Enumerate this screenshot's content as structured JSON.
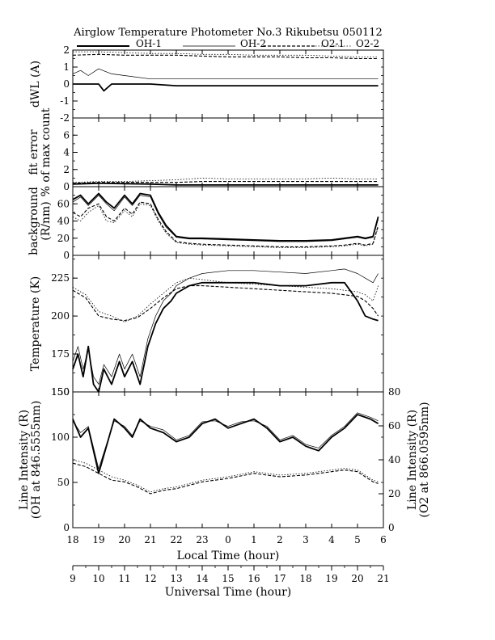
{
  "header": {
    "title": "Airglow Temperature Photometer No.3  Rikubetsu  050112",
    "legend": [
      {
        "label": "OH-1",
        "style": "thick"
      },
      {
        "label": "OH-2",
        "style": "thin"
      },
      {
        "label": "O2-1",
        "style": "dashed"
      },
      {
        "label": "O2-2",
        "style": "dotted"
      }
    ]
  },
  "xaxes": {
    "local": {
      "label": "Local Time (hour)",
      "ticks": [
        "18",
        "19",
        "20",
        "21",
        "22",
        "23",
        "0",
        "1",
        "2",
        "3",
        "4",
        "5",
        "6"
      ]
    },
    "universal": {
      "label": "Universal Time (hour)",
      "ticks": [
        "9",
        "10",
        "11",
        "12",
        "13",
        "14",
        "15",
        "16",
        "17",
        "18",
        "19",
        "20",
        "21"
      ]
    }
  },
  "chart_data": [
    {
      "type": "line",
      "panel": "dwl",
      "ylabel": "dWL (A)",
      "ylim": [
        -2,
        2
      ],
      "yticks": [
        "-2",
        "-1",
        "0",
        "1",
        "2"
      ],
      "x_unit": "universal time (hour)",
      "series": [
        {
          "name": "OH-1",
          "style": "thick",
          "x": [
            9,
            9.5,
            10,
            10.2,
            10.5,
            11,
            12,
            13,
            14,
            15,
            16,
            17,
            18,
            19,
            20,
            20.8
          ],
          "y": [
            0,
            0,
            0,
            -0.4,
            0,
            0,
            0,
            -0.1,
            -0.1,
            -0.1,
            -0.1,
            -0.1,
            -0.1,
            -0.1,
            -0.1,
            -0.1
          ]
        },
        {
          "name": "OH-2",
          "style": "thin",
          "x": [
            9,
            9.3,
            9.6,
            10,
            10.5,
            11,
            12,
            13,
            14,
            15,
            16,
            17,
            18,
            19,
            20,
            20.8
          ],
          "y": [
            0.6,
            0.8,
            0.5,
            0.9,
            0.6,
            0.5,
            0.3,
            0.3,
            0.3,
            0.3,
            0.3,
            0.3,
            0.3,
            0.3,
            0.3,
            0.3
          ]
        },
        {
          "name": "O2-1",
          "style": "dashed",
          "x": [
            9,
            10,
            11,
            12,
            13,
            14,
            15,
            16,
            17,
            18,
            19,
            20,
            20.8
          ],
          "y": [
            1.7,
            1.75,
            1.7,
            1.7,
            1.7,
            1.65,
            1.6,
            1.6,
            1.6,
            1.55,
            1.55,
            1.5,
            1.5
          ]
        },
        {
          "name": "O2-2",
          "style": "dotted",
          "x": [
            9,
            10,
            11,
            12,
            13,
            14,
            15,
            16,
            17,
            18,
            19,
            20,
            20.8
          ],
          "y": [
            1.9,
            1.9,
            1.85,
            1.8,
            1.8,
            1.75,
            1.75,
            1.7,
            1.7,
            1.7,
            1.65,
            1.6,
            1.6
          ]
        }
      ]
    },
    {
      "type": "line",
      "panel": "fit-error",
      "ylabel": "fit error % of max count",
      "ylim": [
        0,
        8
      ],
      "yticks": [
        "0",
        "2",
        "4",
        "6"
      ],
      "x_unit": "universal time (hour)",
      "series": [
        {
          "name": "OH-1",
          "style": "thick",
          "x": [
            9,
            10,
            11,
            12,
            13,
            14,
            15,
            16,
            17,
            18,
            19,
            20,
            20.8
          ],
          "y": [
            0.3,
            0.4,
            0.35,
            0.3,
            0.2,
            0.2,
            0.2,
            0.2,
            0.2,
            0.2,
            0.2,
            0.2,
            0.2
          ]
        },
        {
          "name": "OH-2",
          "style": "thin",
          "x": [
            9,
            10,
            11,
            12,
            13,
            14,
            15,
            16,
            17,
            18,
            19,
            20,
            20.8
          ],
          "y": [
            0.35,
            0.4,
            0.4,
            0.3,
            0.25,
            0.25,
            0.25,
            0.25,
            0.25,
            0.25,
            0.25,
            0.25,
            0.25
          ]
        },
        {
          "name": "O2-1",
          "style": "dashed",
          "x": [
            9,
            10,
            11,
            12,
            13,
            14,
            15,
            16,
            17,
            18,
            19,
            20,
            20.8
          ],
          "y": [
            0.4,
            0.5,
            0.5,
            0.5,
            0.5,
            0.6,
            0.6,
            0.6,
            0.6,
            0.6,
            0.6,
            0.6,
            0.6
          ]
        },
        {
          "name": "O2-2",
          "style": "dotted",
          "x": [
            9,
            10,
            11,
            12,
            13,
            14,
            15,
            16,
            17,
            18,
            19,
            20,
            20.8
          ],
          "y": [
            0.5,
            0.6,
            0.6,
            0.7,
            0.8,
            1.0,
            0.9,
            0.9,
            0.9,
            0.9,
            1.0,
            0.9,
            0.9
          ]
        }
      ]
    },
    {
      "type": "line",
      "panel": "background",
      "ylabel": "background (R/nm)",
      "ylim": [
        0,
        80
      ],
      "yticks": [
        "0",
        "20",
        "40",
        "60"
      ],
      "x_unit": "universal time (hour)",
      "series": [
        {
          "name": "OH-1",
          "style": "thick",
          "x": [
            9,
            9.3,
            9.6,
            10,
            10.3,
            10.6,
            11,
            11.3,
            11.6,
            12,
            12.3,
            12.6,
            13,
            13.5,
            14,
            15,
            16,
            17,
            18,
            19,
            19.5,
            20,
            20.3,
            20.6,
            20.8
          ],
          "y": [
            65,
            70,
            60,
            72,
            62,
            55,
            70,
            60,
            72,
            70,
            50,
            35,
            22,
            20,
            20,
            19,
            18,
            17,
            17,
            18,
            20,
            22,
            20,
            22,
            45
          ]
        },
        {
          "name": "OH-2",
          "style": "thin",
          "x": [
            9,
            9.3,
            9.6,
            10,
            10.3,
            10.6,
            11,
            11.3,
            11.6,
            12,
            12.3,
            12.6,
            13,
            13.5,
            14,
            15,
            16,
            17,
            18,
            19,
            19.5,
            20,
            20.3,
            20.6,
            20.8
          ],
          "y": [
            62,
            68,
            58,
            70,
            60,
            52,
            68,
            58,
            70,
            68,
            48,
            33,
            21,
            19,
            19,
            18,
            17,
            16,
            16,
            17,
            19,
            21,
            19,
            21,
            42
          ]
        },
        {
          "name": "O2-1",
          "style": "dashed",
          "x": [
            9,
            9.3,
            9.6,
            10,
            10.3,
            10.6,
            11,
            11.3,
            11.6,
            12,
            12.3,
            12.6,
            13,
            13.5,
            14,
            15,
            16,
            17,
            18,
            19,
            19.5,
            20,
            20.3,
            20.6,
            20.8
          ],
          "y": [
            50,
            45,
            55,
            60,
            45,
            40,
            55,
            48,
            62,
            60,
            42,
            28,
            16,
            14,
            13,
            12,
            11,
            10,
            10,
            11,
            12,
            14,
            12,
            14,
            35
          ]
        },
        {
          "name": "O2-2",
          "style": "dotted",
          "x": [
            9,
            9.3,
            9.6,
            10,
            10.3,
            10.6,
            11,
            11.3,
            11.6,
            12,
            12.3,
            12.6,
            13,
            13.5,
            14,
            15,
            16,
            17,
            18,
            19,
            19.5,
            20,
            20.3,
            20.6,
            20.8
          ],
          "y": [
            45,
            40,
            50,
            58,
            40,
            38,
            52,
            45,
            60,
            58,
            40,
            26,
            15,
            13,
            12,
            11,
            10,
            9,
            9,
            10,
            11,
            13,
            11,
            13,
            33
          ]
        }
      ]
    },
    {
      "type": "line",
      "panel": "temperature",
      "ylabel": "Temperature (K)",
      "ylim": [
        150,
        240
      ],
      "yticks": [
        "150",
        "175",
        "200",
        "225"
      ],
      "x_unit": "universal time (hour)",
      "series": [
        {
          "name": "OH-1",
          "style": "thick",
          "x": [
            9,
            9.2,
            9.4,
            9.6,
            9.8,
            10,
            10.2,
            10.5,
            10.8,
            11,
            11.3,
            11.6,
            11.9,
            12.2,
            12.5,
            12.8,
            13,
            13.5,
            14,
            15,
            16,
            17,
            18,
            19,
            19.5,
            20,
            20.3,
            20.6,
            20.8
          ],
          "y": [
            165,
            175,
            160,
            180,
            155,
            150,
            165,
            155,
            170,
            160,
            170,
            155,
            180,
            195,
            205,
            210,
            215,
            220,
            222,
            222,
            222,
            220,
            220,
            222,
            222,
            210,
            200,
            198,
            197
          ]
        },
        {
          "name": "OH-2",
          "style": "thin",
          "x": [
            9,
            9.2,
            9.4,
            9.6,
            9.8,
            10,
            10.2,
            10.5,
            10.8,
            11,
            11.3,
            11.6,
            11.9,
            12.2,
            12.5,
            12.8,
            13,
            13.5,
            14,
            15,
            16,
            17,
            18,
            19,
            19.5,
            20,
            20.3,
            20.6,
            20.8
          ],
          "y": [
            170,
            180,
            165,
            178,
            160,
            155,
            168,
            160,
            175,
            165,
            175,
            160,
            185,
            200,
            210,
            215,
            220,
            225,
            228,
            230,
            230,
            229,
            228,
            230,
            231,
            228,
            225,
            222,
            228
          ]
        },
        {
          "name": "O2-1",
          "style": "dashed",
          "x": [
            9,
            9.5,
            10,
            10.5,
            11,
            11.5,
            12,
            12.5,
            13,
            13.5,
            14,
            15,
            16,
            17,
            18,
            19,
            19.5,
            20,
            20.3,
            20.6,
            20.8
          ],
          "y": [
            217,
            212,
            200,
            198,
            197,
            199,
            205,
            212,
            218,
            220,
            220,
            219,
            218,
            217,
            216,
            215,
            214,
            213,
            210,
            205,
            200
          ]
        },
        {
          "name": "O2-2",
          "style": "dotted",
          "x": [
            9,
            9.5,
            10,
            10.5,
            11,
            11.5,
            12,
            12.5,
            13,
            13.5,
            14,
            15,
            16,
            17,
            18,
            19,
            19.5,
            20,
            20.3,
            20.6,
            20.8
          ],
          "y": [
            219,
            214,
            203,
            200,
            196,
            200,
            208,
            215,
            222,
            225,
            224,
            222,
            221,
            220,
            219,
            218,
            217,
            216,
            214,
            210,
            220
          ]
        }
      ]
    },
    {
      "type": "line",
      "panel": "intensity",
      "ylabel": "Line Intensity (R) (OH at 846.5555nm)",
      "ylabel_right": "Line Intensity (R) (O2 at 866.0595nm)",
      "ylim": [
        0,
        150
      ],
      "ylim_right": [
        0,
        80
      ],
      "yticks": [
        "0",
        "50",
        "100",
        "150"
      ],
      "yticks_right": [
        "0",
        "20",
        "40",
        "60",
        "80"
      ],
      "x_unit": "universal time (hour)",
      "series": [
        {
          "name": "OH-1",
          "style": "thick",
          "axis": "left",
          "x": [
            9,
            9.3,
            9.6,
            10,
            10.3,
            10.6,
            11,
            11.3,
            11.6,
            12,
            12.5,
            13,
            13.5,
            14,
            14.5,
            15,
            15.5,
            16,
            16.5,
            17,
            17.5,
            18,
            18.5,
            19,
            19.5,
            20,
            20.5,
            20.8
          ],
          "y": [
            120,
            100,
            110,
            60,
            90,
            120,
            110,
            100,
            120,
            110,
            105,
            95,
            100,
            115,
            120,
            110,
            115,
            120,
            110,
            95,
            100,
            90,
            85,
            100,
            110,
            125,
            120,
            115
          ]
        },
        {
          "name": "OH-2",
          "style": "thin",
          "axis": "left",
          "x": [
            9,
            9.3,
            9.6,
            10,
            10.3,
            10.6,
            11,
            11.3,
            11.6,
            12,
            12.5,
            13,
            13.5,
            14,
            14.5,
            15,
            15.5,
            16,
            16.5,
            17,
            17.5,
            18,
            18.5,
            19,
            19.5,
            20,
            20.5,
            20.8
          ],
          "y": [
            118,
            105,
            112,
            65,
            92,
            118,
            112,
            102,
            118,
            112,
            108,
            97,
            102,
            117,
            118,
            112,
            117,
            118,
            112,
            97,
            102,
            92,
            88,
            102,
            112,
            127,
            122,
            118
          ]
        },
        {
          "name": "O2-1",
          "style": "dashed",
          "axis": "right",
          "x": [
            9,
            9.5,
            10,
            10.5,
            11,
            11.5,
            12,
            12.5,
            13,
            13.5,
            14,
            14.5,
            15,
            16,
            17,
            18,
            19,
            19.5,
            20,
            20.3,
            20.6,
            20.8
          ],
          "y": [
            38,
            36,
            32,
            28,
            27,
            24,
            20,
            22,
            23,
            25,
            27,
            28,
            29,
            32,
            30,
            31,
            33,
            34,
            33,
            30,
            27,
            26
          ]
        },
        {
          "name": "O2-2",
          "style": "dotted",
          "axis": "right",
          "x": [
            9,
            9.5,
            10,
            10.5,
            11,
            11.5,
            12,
            12.5,
            13,
            13.5,
            14,
            14.5,
            15,
            16,
            17,
            18,
            19,
            19.5,
            20,
            20.3,
            20.6,
            20.8
          ],
          "y": [
            40,
            38,
            34,
            30,
            28,
            25,
            21,
            23,
            24,
            26,
            28,
            29,
            30,
            33,
            31,
            32,
            34,
            35,
            34,
            31,
            28,
            27
          ]
        }
      ]
    }
  ]
}
